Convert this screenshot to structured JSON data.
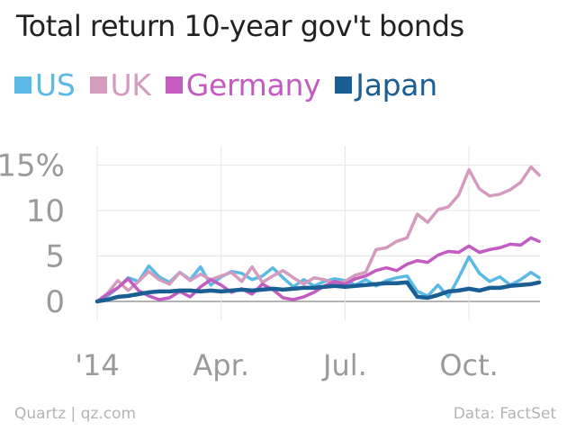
{
  "chart_data": {
    "type": "line",
    "title": "Total return 10-year gov't bonds",
    "xlabel": "",
    "ylabel": "",
    "x_ticks": [
      "'14",
      "Apr.",
      "Jul.",
      "Oct."
    ],
    "x_tick_positions": [
      1,
      4,
      7,
      10
    ],
    "y_ticks": [
      "0",
      "5",
      "10",
      "15%"
    ],
    "y_tick_values": [
      0,
      5,
      10,
      15
    ],
    "xlim": [
      1,
      11.8
    ],
    "ylim": [
      -1,
      17.5
    ],
    "grid": true,
    "legend": "top-left",
    "series": [
      {
        "name": "US",
        "color": "#5bb9e5",
        "x": [
          1.0,
          1.25,
          1.5,
          1.75,
          2.0,
          2.25,
          2.5,
          2.75,
          3.0,
          3.25,
          3.5,
          3.75,
          4.0,
          4.25,
          4.5,
          4.75,
          5.0,
          5.25,
          5.5,
          5.75,
          6.0,
          6.25,
          6.5,
          6.75,
          7.0,
          7.25,
          7.5,
          7.75,
          8.0,
          8.25,
          8.5,
          8.75,
          9.0,
          9.25,
          9.5,
          9.75,
          10.0,
          10.25,
          10.5,
          10.75,
          11.0,
          11.25,
          11.5,
          11.7
        ],
        "y": [
          0,
          0.6,
          1.5,
          2.6,
          2.2,
          3.9,
          2.7,
          2.1,
          3.2,
          2.4,
          3.8,
          1.8,
          2.7,
          3.3,
          3.1,
          2.4,
          2.8,
          3.7,
          2.6,
          1.6,
          2.4,
          1.7,
          2.2,
          2.5,
          2.3,
          1.8,
          2.4,
          1.7,
          2.3,
          2.6,
          2.8,
          1.1,
          0.6,
          1.8,
          0.5,
          2.6,
          4.9,
          3.1,
          2.2,
          2.7,
          1.8,
          2.4,
          3.2,
          2.6
        ]
      },
      {
        "name": "UK",
        "color": "#d49bbf",
        "x": [
          1.0,
          1.25,
          1.5,
          1.75,
          2.0,
          2.25,
          2.5,
          2.75,
          3.0,
          3.25,
          3.5,
          3.75,
          4.0,
          4.25,
          4.5,
          4.75,
          5.0,
          5.25,
          5.5,
          5.75,
          6.0,
          6.25,
          6.5,
          6.75,
          7.0,
          7.25,
          7.5,
          7.75,
          8.0,
          8.25,
          8.5,
          8.75,
          9.0,
          9.25,
          9.5,
          9.75,
          10.0,
          10.25,
          10.5,
          10.75,
          11.0,
          11.25,
          11.5,
          11.7
        ],
        "y": [
          0,
          0.9,
          2.3,
          1.2,
          2.2,
          3.3,
          2.4,
          1.9,
          3.2,
          2.3,
          3.0,
          2.4,
          2.8,
          3.2,
          2.2,
          3.8,
          2.1,
          2.8,
          3.4,
          2.6,
          1.9,
          2.6,
          2.4,
          2.0,
          2.2,
          2.9,
          3.2,
          5.7,
          5.9,
          6.6,
          7.0,
          9.6,
          8.7,
          10.1,
          10.4,
          11.7,
          14.5,
          12.4,
          11.6,
          11.8,
          12.3,
          13.1,
          14.8,
          13.9
        ]
      },
      {
        "name": "Germany",
        "color": "#c35bc1",
        "x": [
          1.0,
          1.25,
          1.5,
          1.75,
          2.0,
          2.25,
          2.5,
          2.75,
          3.0,
          3.25,
          3.5,
          3.75,
          4.0,
          4.25,
          4.5,
          4.75,
          5.0,
          5.25,
          5.5,
          5.75,
          6.0,
          6.25,
          6.5,
          6.75,
          7.0,
          7.25,
          7.5,
          7.75,
          8.0,
          8.25,
          8.5,
          8.75,
          9.0,
          9.25,
          9.5,
          9.75,
          10.0,
          10.25,
          10.5,
          10.75,
          11.0,
          11.25,
          11.5,
          11.7
        ],
        "y": [
          0,
          0.8,
          1.5,
          2.5,
          1.2,
          0.6,
          0.2,
          0.4,
          1.1,
          0.5,
          1.6,
          2.4,
          1.8,
          1.0,
          1.4,
          0.8,
          1.9,
          1.3,
          0.4,
          0.2,
          0.5,
          1.0,
          1.7,
          2.2,
          1.9,
          2.5,
          2.8,
          3.4,
          3.7,
          3.4,
          4.1,
          4.5,
          4.3,
          5.1,
          5.5,
          5.4,
          6.1,
          5.4,
          5.7,
          5.9,
          6.3,
          6.2,
          7.0,
          6.6
        ]
      },
      {
        "name": "Japan",
        "color": "#1a5e94",
        "x": [
          1.0,
          1.25,
          1.5,
          1.75,
          2.0,
          2.25,
          2.5,
          2.75,
          3.0,
          3.25,
          3.5,
          3.75,
          4.0,
          4.25,
          4.5,
          4.75,
          5.0,
          5.25,
          5.5,
          5.75,
          6.0,
          6.25,
          6.5,
          6.75,
          7.0,
          7.25,
          7.5,
          7.75,
          8.0,
          8.25,
          8.5,
          8.75,
          9.0,
          9.25,
          9.5,
          9.75,
          10.0,
          10.25,
          10.5,
          10.75,
          11.0,
          11.25,
          11.5,
          11.7
        ],
        "y": [
          0,
          0.2,
          0.5,
          0.6,
          0.8,
          1.0,
          1.1,
          1.1,
          1.2,
          1.2,
          1.1,
          1.2,
          1.1,
          1.2,
          1.3,
          1.2,
          1.3,
          1.4,
          1.3,
          1.4,
          1.5,
          1.5,
          1.6,
          1.7,
          1.6,
          1.7,
          1.8,
          1.9,
          2.0,
          2.0,
          2.1,
          0.5,
          0.4,
          0.7,
          1.1,
          1.2,
          1.4,
          1.2,
          1.5,
          1.5,
          1.7,
          1.8,
          1.9,
          2.1
        ]
      }
    ]
  },
  "footer": {
    "source_left": "Quartz | qz.com",
    "source_right": "Data: FactSet"
  }
}
